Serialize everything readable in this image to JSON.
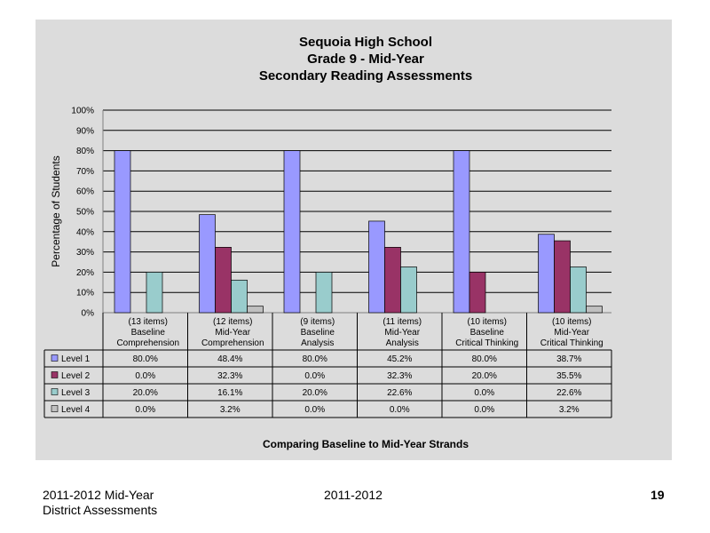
{
  "chart_data": {
    "type": "bar",
    "title": [
      "Sequoia High School",
      "Grade 9 - Mid-Year",
      "Secondary Reading Assessments"
    ],
    "ylabel": "Percentage of Students",
    "xlabel": "Comparing Baseline to Mid-Year Strands",
    "ylim": [
      0,
      100
    ],
    "yticks": [
      "0%",
      "10%",
      "20%",
      "30%",
      "40%",
      "50%",
      "60%",
      "70%",
      "80%",
      "90%",
      "100%"
    ],
    "categories": [
      [
        "(13 items)",
        "Baseline",
        "Comprehension"
      ],
      [
        "(12 items)",
        "Mid-Year",
        "Comprehension"
      ],
      [
        "(9 items)",
        "Baseline",
        "Analysis"
      ],
      [
        "(11 items)",
        "Mid-Year",
        "Analysis"
      ],
      [
        "(10 items)",
        "Baseline",
        "Critical Thinking"
      ],
      [
        "(10 items)",
        "Mid-Year",
        "Critical Thinking"
      ]
    ],
    "series": [
      {
        "name": "Level 1",
        "color": "#9999ff",
        "values": [
          80.0,
          48.4,
          80.0,
          45.2,
          80.0,
          38.7
        ],
        "labels": [
          "80.0%",
          "48.4%",
          "80.0%",
          "45.2%",
          "80.0%",
          "38.7%"
        ]
      },
      {
        "name": "Level 2",
        "color": "#993366",
        "values": [
          0.0,
          32.3,
          0.0,
          32.3,
          20.0,
          35.5
        ],
        "labels": [
          "0.0%",
          "32.3%",
          "0.0%",
          "32.3%",
          "20.0%",
          "35.5%"
        ]
      },
      {
        "name": "Level 3",
        "color": "#99cccc",
        "values": [
          20.0,
          16.1,
          20.0,
          22.6,
          0.0,
          22.6
        ],
        "labels": [
          "20.0%",
          "16.1%",
          "20.0%",
          "22.6%",
          "0.0%",
          "22.6%"
        ]
      },
      {
        "name": "Level 4",
        "color": "#c0c0c0",
        "values": [
          0.0,
          3.2,
          0.0,
          0.0,
          0.0,
          3.2
        ],
        "labels": [
          "0.0%",
          "3.2%",
          "0.0%",
          "0.0%",
          "0.0%",
          "3.2%"
        ]
      }
    ],
    "grid": true,
    "legend": "data-table"
  },
  "footer": {
    "left_line1": "2011-2012  Mid-Year",
    "left_line2": "District Assessments",
    "center": "2011-2012",
    "page_number": "19"
  }
}
